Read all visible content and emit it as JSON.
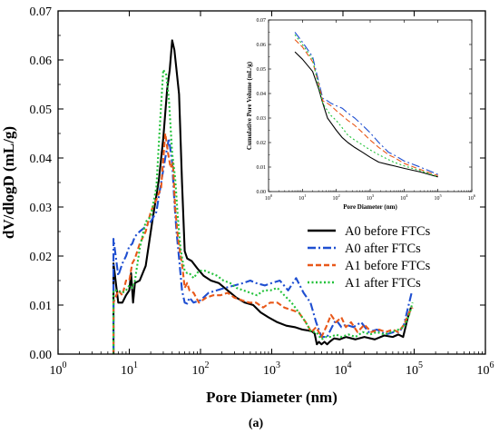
{
  "chart_data": [
    {
      "type": "line",
      "title": "",
      "xlabel": "Pore Diameter (nm)",
      "ylabel": "dV/dlogD (mL/g)",
      "xscale": "log",
      "xlim": [
        1,
        1000000
      ],
      "ylim": [
        0,
        0.07
      ],
      "xticks": [
        1,
        10,
        100,
        1000,
        10000,
        100000,
        1000000
      ],
      "xtick_labels": [
        {
          "base": "10",
          "exp": "0"
        },
        {
          "base": "10",
          "exp": "1"
        },
        {
          "base": "10",
          "exp": "2"
        },
        {
          "base": "10",
          "exp": "3"
        },
        {
          "base": "10",
          "exp": "4"
        },
        {
          "base": "10",
          "exp": "5"
        },
        {
          "base": "10",
          "exp": "6"
        }
      ],
      "yticks": [
        0,
        0.01,
        0.02,
        0.03,
        0.04,
        0.05,
        0.06,
        0.07
      ],
      "ytick_labels": [
        "0.00",
        "0.01",
        "0.02",
        "0.03",
        "0.04",
        "0.05",
        "0.06",
        "0.07"
      ],
      "legend_position": "center-right",
      "grid": false,
      "series": [
        {
          "name": "A0 before FTCs",
          "color": "#000000",
          "style": "solid",
          "x": [
            6,
            6,
            7,
            8,
            9,
            10,
            10.6,
            11.3,
            12,
            14,
            17,
            21,
            26,
            30,
            34,
            37,
            40,
            43,
            46,
            50,
            55,
            60,
            65,
            75,
            90,
            110,
            140,
            180,
            240,
            320,
            420,
            550,
            700,
            900,
            1200,
            1600,
            2100,
            2700,
            3300,
            3700,
            4000,
            4300,
            4600,
            5000,
            5500,
            6000,
            6500,
            7500,
            9000,
            11000,
            15000,
            20000,
            28000,
            38000,
            50000,
            60000,
            70000,
            80000,
            90000
          ],
          "y": [
            0,
            0.0185,
            0.0105,
            0.0105,
            0.012,
            0.013,
            0.0165,
            0.0105,
            0.0145,
            0.015,
            0.018,
            0.027,
            0.0355,
            0.044,
            0.054,
            0.058,
            0.064,
            0.062,
            0.058,
            0.053,
            0.035,
            0.021,
            0.0195,
            0.019,
            0.0175,
            0.016,
            0.015,
            0.0145,
            0.013,
            0.0115,
            0.0105,
            0.01,
            0.0085,
            0.0075,
            0.0065,
            0.0058,
            0.0055,
            0.005,
            0.0048,
            0.0046,
            0.0042,
            0.002,
            0.0025,
            0.002,
            0.0025,
            0.002,
            0.0025,
            0.0032,
            0.003,
            0.0035,
            0.003,
            0.0035,
            0.003,
            0.0038,
            0.0035,
            0.004,
            0.0035,
            0.007,
            0.0095
          ]
        },
        {
          "name": "A0 after FTCs",
          "color": "#1f4fd1",
          "style": "dashdot",
          "x": [
            6,
            6,
            7,
            8,
            9,
            10,
            11,
            12,
            14,
            17,
            20,
            24,
            28,
            32,
            36,
            40,
            43,
            46,
            50,
            55,
            60,
            65,
            70,
            80,
            100,
            130,
            170,
            220,
            300,
            400,
            500,
            600,
            800,
            1000,
            1300,
            1700,
            2200,
            2800,
            3500,
            4200,
            5000,
            6000,
            7000,
            8000,
            9500,
            11000,
            14000,
            18000,
            23000,
            30000,
            40000,
            52000,
            62000,
            72000,
            82000,
            92000
          ],
          "y": [
            0,
            0.0235,
            0.016,
            0.0185,
            0.02,
            0.022,
            0.0225,
            0.024,
            0.025,
            0.026,
            0.027,
            0.029,
            0.035,
            0.04,
            0.044,
            0.039,
            0.031,
            0.025,
            0.0195,
            0.013,
            0.0105,
            0.0103,
            0.0115,
            0.0105,
            0.011,
            0.0125,
            0.013,
            0.0135,
            0.014,
            0.0145,
            0.015,
            0.0145,
            0.014,
            0.0145,
            0.015,
            0.013,
            0.0155,
            0.0125,
            0.0105,
            0.0065,
            0.0035,
            0.0035,
            0.0055,
            0.007,
            0.0055,
            0.006,
            0.0055,
            0.0065,
            0.0045,
            0.005,
            0.004,
            0.0045,
            0.0045,
            0.006,
            0.0095,
            0.0125
          ]
        },
        {
          "name": "A1 before FTCs",
          "color": "#e8581a",
          "style": "dashed",
          "x": [
            6,
            6,
            7,
            8,
            9,
            10,
            11,
            12,
            14,
            17,
            20,
            24,
            28,
            32,
            35,
            38,
            41,
            44,
            48,
            52,
            56,
            60,
            65,
            70,
            80,
            95,
            120,
            150,
            190,
            240,
            300,
            380,
            480,
            600,
            760,
            950,
            1200,
            1500,
            1900,
            2400,
            3000,
            3600,
            4200,
            5000,
            5800,
            6800,
            8000,
            9500,
            11000,
            13000,
            16000,
            20000,
            25000,
            32000,
            40000,
            50000,
            60000,
            72000,
            85000,
            95000
          ],
          "y": [
            0,
            0.0105,
            0.013,
            0.012,
            0.015,
            0.015,
            0.0185,
            0.0195,
            0.0225,
            0.025,
            0.029,
            0.0315,
            0.034,
            0.045,
            0.041,
            0.038,
            0.039,
            0.03,
            0.024,
            0.0205,
            0.0175,
            0.0135,
            0.0145,
            0.013,
            0.0125,
            0.0105,
            0.0115,
            0.012,
            0.012,
            0.0125,
            0.0115,
            0.011,
            0.0105,
            0.0105,
            0.0095,
            0.0105,
            0.0105,
            0.0095,
            0.009,
            0.0085,
            0.0065,
            0.0045,
            0.0055,
            0.0035,
            0.0055,
            0.008,
            0.0065,
            0.0075,
            0.0055,
            0.0065,
            0.0045,
            0.006,
            0.0045,
            0.005,
            0.0045,
            0.005,
            0.0045,
            0.006,
            0.0085,
            0.0095
          ]
        },
        {
          "name": "A1 after FTCs",
          "color": "#22c23a",
          "style": "dotted",
          "x": [
            6,
            6,
            7,
            8,
            9,
            10,
            11,
            12,
            14,
            17,
            20,
            24,
            27,
            30,
            33,
            36,
            40,
            44,
            48,
            52,
            56,
            60,
            65,
            70,
            80,
            95,
            115,
            140,
            170,
            210,
            260,
            320,
            400,
            500,
            620,
            780,
            960,
            1200,
            1500,
            1900,
            2400,
            3000,
            3600,
            4200,
            5000,
            5800,
            6800,
            8000,
            9500,
            12000,
            15000,
            19000,
            24000,
            30000,
            38000,
            48000,
            60000,
            72000,
            85000,
            95000
          ],
          "y": [
            0,
            0.013,
            0.013,
            0.0125,
            0.013,
            0.014,
            0.0135,
            0.015,
            0.0215,
            0.027,
            0.028,
            0.034,
            0.047,
            0.058,
            0.057,
            0.052,
            0.041,
            0.036,
            0.028,
            0.022,
            0.019,
            0.017,
            0.0165,
            0.0165,
            0.0155,
            0.017,
            0.017,
            0.0165,
            0.016,
            0.015,
            0.0145,
            0.0135,
            0.013,
            0.0125,
            0.012,
            0.013,
            0.013,
            0.0135,
            0.012,
            0.0105,
            0.0085,
            0.0065,
            0.0045,
            0.0045,
            0.003,
            0.0035,
            0.0035,
            0.004,
            0.0035,
            0.004,
            0.0035,
            0.0045,
            0.004,
            0.0045,
            0.004,
            0.0045,
            0.005,
            0.0055,
            0.008,
            0.0105
          ]
        }
      ]
    },
    {
      "type": "line",
      "title": "",
      "xlabel": "Pore Diameter (nm)",
      "ylabel": "Cumulative Pore Volume (mL/g)",
      "xscale": "log",
      "xlim": [
        1,
        1000000
      ],
      "ylim": [
        0,
        0.07
      ],
      "xticks": [
        1,
        10,
        100,
        1000,
        10000,
        100000,
        1000000
      ],
      "xtick_labels": [
        {
          "base": "10",
          "exp": "0"
        },
        {
          "base": "10",
          "exp": "1"
        },
        {
          "base": "10",
          "exp": "2"
        },
        {
          "base": "10",
          "exp": "3"
        },
        {
          "base": "10",
          "exp": "4"
        },
        {
          "base": "10",
          "exp": "5"
        },
        {
          "base": "10",
          "exp": "6"
        }
      ],
      "yticks": [
        0,
        0.01,
        0.02,
        0.03,
        0.04,
        0.05,
        0.06,
        0.07
      ],
      "ytick_labels": [
        "0.00",
        "0.01",
        "0.02",
        "0.03",
        "0.04",
        "0.05",
        "0.06",
        "0.07"
      ],
      "grid": false,
      "series": [
        {
          "color": "#000000",
          "style": "solid",
          "x": [
            6,
            10,
            20,
            30,
            40,
            55,
            70,
            100,
            150,
            220,
            350,
            600,
            1000,
            1800,
            3500,
            5000,
            10000,
            30000,
            100000
          ],
          "y": [
            0.057,
            0.054,
            0.049,
            0.042,
            0.036,
            0.03,
            0.028,
            0.025,
            0.022,
            0.02,
            0.018,
            0.016,
            0.014,
            0.012,
            0.011,
            0.0105,
            0.0095,
            0.008,
            0.006
          ]
        },
        {
          "color": "#1f4fd1",
          "style": "dashdot",
          "x": [
            6,
            10,
            20,
            30,
            40,
            55,
            70,
            100,
            150,
            220,
            350,
            600,
            1000,
            1800,
            3500,
            5000,
            10000,
            30000,
            100000
          ],
          "y": [
            0.065,
            0.061,
            0.055,
            0.045,
            0.038,
            0.037,
            0.036,
            0.035,
            0.034,
            0.032,
            0.03,
            0.027,
            0.024,
            0.02,
            0.016,
            0.015,
            0.0125,
            0.01,
            0.007
          ]
        },
        {
          "color": "#e8581a",
          "style": "dashed",
          "x": [
            6,
            10,
            20,
            30,
            40,
            55,
            70,
            100,
            150,
            220,
            350,
            600,
            1000,
            1800,
            3500,
            5000,
            10000,
            30000,
            100000
          ],
          "y": [
            0.062,
            0.059,
            0.053,
            0.044,
            0.037,
            0.036,
            0.035,
            0.033,
            0.031,
            0.029,
            0.027,
            0.024,
            0.021,
            0.018,
            0.015,
            0.014,
            0.0115,
            0.009,
            0.0065
          ]
        },
        {
          "color": "#22c23a",
          "style": "dotted",
          "x": [
            6,
            10,
            20,
            30,
            40,
            55,
            70,
            100,
            150,
            220,
            350,
            600,
            1000,
            1800,
            3500,
            5000,
            10000,
            30000,
            100000
          ],
          "y": [
            0.064,
            0.06,
            0.054,
            0.043,
            0.036,
            0.033,
            0.031,
            0.029,
            0.026,
            0.023,
            0.021,
            0.019,
            0.017,
            0.015,
            0.013,
            0.012,
            0.0105,
            0.0085,
            0.006
          ]
        }
      ]
    }
  ],
  "caption": "(a)"
}
